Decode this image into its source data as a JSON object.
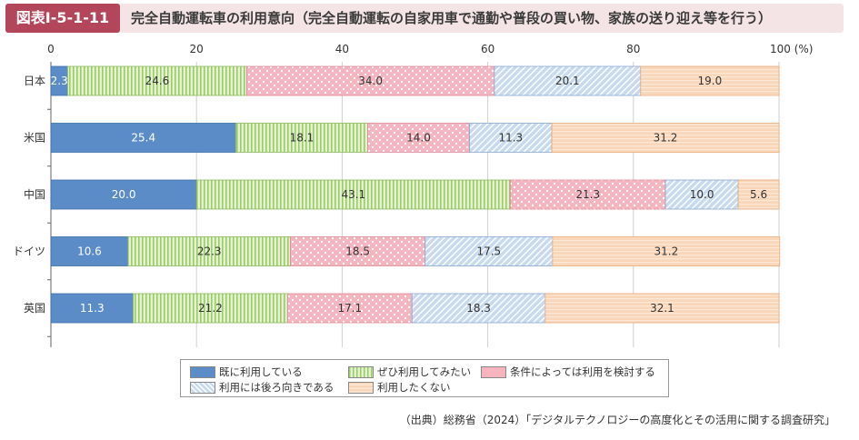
{
  "header": {
    "figure_label": "図表Ⅰ-5-1-11",
    "title": "完全自動運転車の利用意向（完全自動運転の自家用車で通勤や普段の買い物、家族の送り迎え等を行う）"
  },
  "source": "（出典）総務省（2024）「デジタルテクノロジーの高度化とその活用に関する調査研究」",
  "colors": {
    "s1": "#5b8cc8",
    "s2": "#cde8a8",
    "s3": "#f6b4bf",
    "s4": "#b7cdea",
    "s5": "#f7c9a3"
  },
  "chart_data": {
    "type": "bar",
    "orientation": "horizontal",
    "stacked": true,
    "percent_stacked": true,
    "xlim": [
      0,
      100
    ],
    "x_ticks": [
      "0",
      "20",
      "40",
      "60",
      "80",
      "100 (%)"
    ],
    "categories": [
      "日本",
      "米国",
      "中国",
      "ドイツ",
      "英国"
    ],
    "series": [
      {
        "name": "既に利用している",
        "values": [
          2.3,
          25.4,
          20.0,
          10.6,
          11.3
        ]
      },
      {
        "name": "ぜひ利用してみたい",
        "values": [
          24.6,
          18.1,
          43.1,
          22.3,
          21.2
        ]
      },
      {
        "name": "条件によっては利用を検討する",
        "values": [
          34.0,
          14.0,
          21.3,
          18.5,
          17.1
        ]
      },
      {
        "name": "利用には後ろ向きである",
        "values": [
          20.1,
          11.3,
          10.0,
          17.5,
          18.3
        ]
      },
      {
        "name": "利用したくない",
        "values": [
          19.0,
          31.2,
          5.6,
          31.2,
          32.1
        ]
      }
    ],
    "legend_position": "bottom",
    "grid": true
  }
}
